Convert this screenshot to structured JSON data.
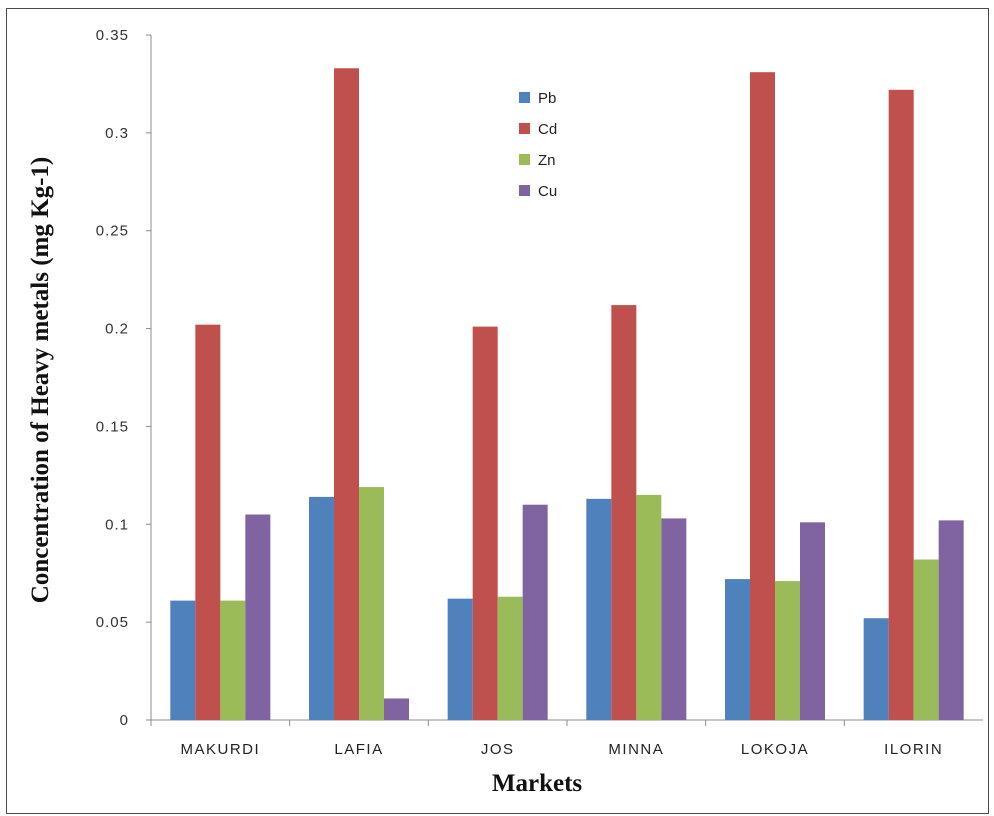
{
  "chart_data": {
    "type": "bar",
    "title": "",
    "xlabel": "Markets",
    "ylabel": "Concentration of Heavy metals (mg Kg-1)",
    "ylim": [
      0,
      0.35
    ],
    "yticks": [
      "0",
      "0.05",
      "0.1",
      "0.15",
      "0.2",
      "0.25",
      "0.3",
      "0.35"
    ],
    "categories": [
      "MAKURDI",
      "LAFIA",
      "JOS",
      "MINNA",
      "LOKOJA",
      "ILORIN"
    ],
    "series": [
      {
        "name": "Pb",
        "color": "#4f81bd",
        "values": [
          0.061,
          0.114,
          0.062,
          0.113,
          0.072,
          0.052
        ]
      },
      {
        "name": "Cd",
        "color": "#c0504d",
        "values": [
          0.202,
          0.333,
          0.201,
          0.212,
          0.331,
          0.322
        ]
      },
      {
        "name": "Zn",
        "color": "#9bbb59",
        "values": [
          0.061,
          0.119,
          0.063,
          0.115,
          0.071,
          0.082
        ]
      },
      {
        "name": "Cu",
        "color": "#8064a2",
        "values": [
          0.105,
          0.011,
          0.11,
          0.103,
          0.101,
          0.102
        ]
      }
    ],
    "grid": false,
    "legend_position": "top-center"
  }
}
